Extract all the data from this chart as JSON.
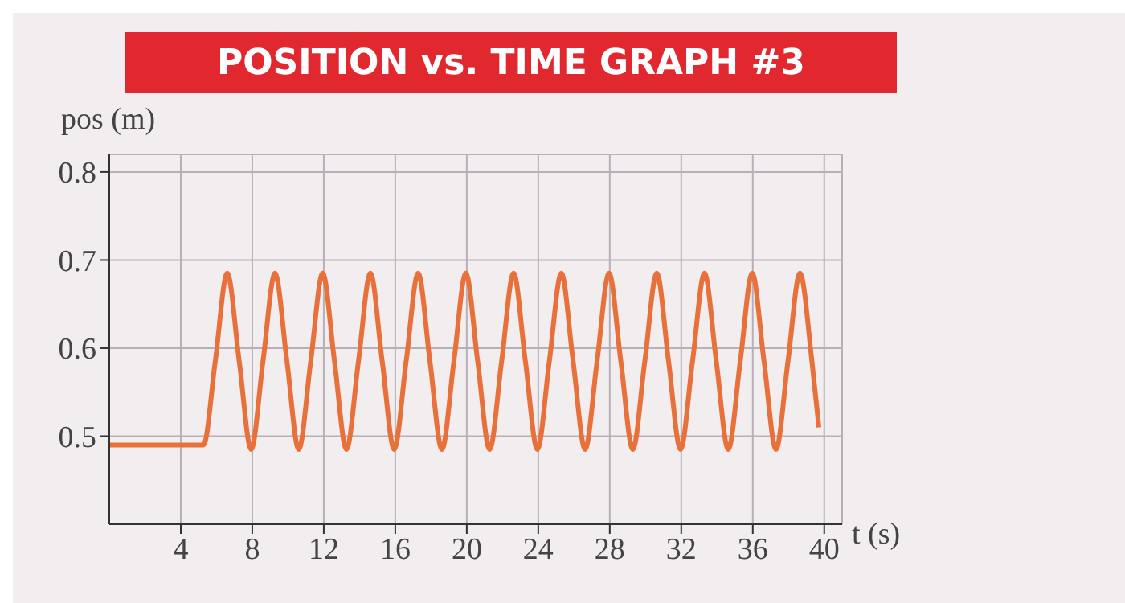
{
  "chart_data": {
    "type": "line",
    "title": "POSITION vs. TIME GRAPH #3",
    "xlabel": "t (s)",
    "ylabel": "pos (m)",
    "xlim": [
      0,
      41
    ],
    "xticks": [
      4,
      8,
      12,
      16,
      20,
      24,
      28,
      32,
      36,
      40
    ],
    "ylim": [
      0.4,
      0.82
    ],
    "yticks": [
      0.5,
      0.6,
      0.7,
      0.8
    ],
    "grid": true,
    "legend": false,
    "marker": "none",
    "line_style": "solid",
    "x": [
      0,
      5.27,
      5.93,
      6.6,
      7.27,
      7.94,
      8.6,
      9.27,
      9.94,
      10.6,
      11.27,
      11.94,
      12.6,
      13.27,
      13.94,
      14.61,
      15.27,
      15.94,
      16.61,
      17.28,
      17.94,
      18.61,
      19.28,
      19.95,
      20.61,
      21.28,
      21.95,
      22.62,
      23.28,
      23.95,
      24.62,
      25.29,
      25.95,
      26.62,
      27.29,
      27.96,
      28.62,
      29.29,
      29.96,
      30.63,
      31.29,
      31.96,
      32.63,
      33.3,
      33.96,
      34.63,
      35.3,
      35.97,
      36.63,
      37.3,
      37.97,
      38.64,
      39.31,
      39.7
    ],
    "series": [
      {
        "color": "#e8703a",
        "values": [
          0.49,
          0.49,
          0.585,
          0.685,
          0.585,
          0.485,
          0.585,
          0.685,
          0.585,
          0.485,
          0.585,
          0.685,
          0.585,
          0.485,
          0.585,
          0.685,
          0.585,
          0.485,
          0.585,
          0.685,
          0.585,
          0.485,
          0.585,
          0.685,
          0.585,
          0.485,
          0.585,
          0.685,
          0.585,
          0.485,
          0.585,
          0.685,
          0.585,
          0.485,
          0.585,
          0.685,
          0.585,
          0.485,
          0.585,
          0.685,
          0.585,
          0.485,
          0.585,
          0.685,
          0.585,
          0.485,
          0.585,
          0.685,
          0.585,
          0.485,
          0.585,
          0.685,
          0.585,
          0.51
        ]
      }
    ]
  }
}
